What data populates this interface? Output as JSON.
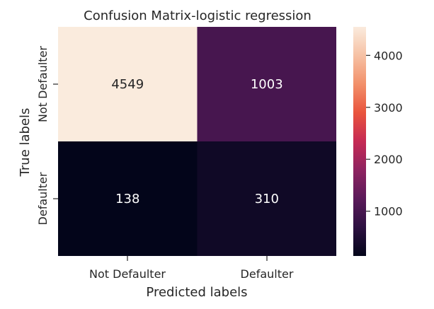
{
  "chart_data": {
    "type": "heatmap",
    "title": "Confusion Matrix-logistic regression",
    "xlabel": "Predicted labels",
    "ylabel": "True labels",
    "x_categories": [
      "Not Defaulter",
      "Defaulter"
    ],
    "y_categories": [
      "Not Defaulter",
      "Defaulter"
    ],
    "values": [
      [
        4549,
        1003
      ],
      [
        138,
        310
      ]
    ],
    "colorbar": {
      "min": 138,
      "max": 4549,
      "ticks": [
        1000,
        2000,
        3000,
        4000
      ],
      "colormap": [
        "#03051a",
        "#2d1141",
        "#5b1a5a",
        "#8e2360",
        "#c62a54",
        "#e9543d",
        "#f2906a",
        "#f6c1a4",
        "#faebdd"
      ]
    }
  }
}
